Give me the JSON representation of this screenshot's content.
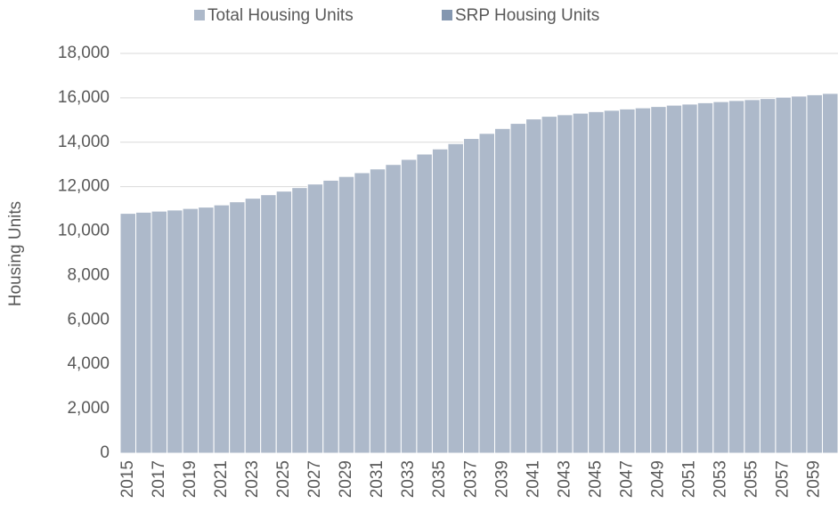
{
  "chart_data": {
    "type": "bar",
    "y_label": "Housing Units",
    "categories": [
      "2015",
      null,
      "2017",
      null,
      "2019",
      null,
      "2021",
      null,
      "2023",
      null,
      "2025",
      null,
      "2027",
      null,
      "2029",
      null,
      "2031",
      null,
      "2033",
      null,
      "2035",
      null,
      "2037",
      null,
      "2039",
      null,
      "2041",
      null,
      "2043",
      null,
      "2045",
      null,
      "2047",
      null,
      "2049",
      null,
      "2051",
      null,
      "2053",
      null,
      "2055",
      null,
      "2057",
      null,
      "2059",
      null
    ],
    "series": [
      {
        "name": "Total Housing Units",
        "color": "#adb9ca",
        "values": [
          10800,
          10850,
          10900,
          10950,
          11020,
          11080,
          11180,
          11320,
          11480,
          11640,
          11800,
          11960,
          12120,
          12290,
          12460,
          12630,
          12800,
          13000,
          13230,
          13470,
          13700,
          13940,
          14170,
          14400,
          14620,
          14850,
          15050,
          15170,
          15240,
          15310,
          15380,
          15440,
          15500,
          15550,
          15610,
          15670,
          15720,
          15780,
          15830,
          15880,
          15920,
          15970,
          16030,
          16080,
          16140,
          16200
        ]
      },
      {
        "name": "SRP Housing Units",
        "color": "#8497b0",
        "values": [
          null,
          null,
          null,
          null,
          null,
          null,
          null,
          null,
          null,
          null,
          null,
          null,
          null,
          null,
          null,
          null,
          null,
          null,
          null,
          null,
          null,
          null,
          null,
          null,
          null,
          null,
          null,
          null,
          null,
          null,
          null,
          null,
          null,
          null,
          null,
          null,
          null,
          null,
          null,
          null,
          null,
          null,
          null,
          null,
          null,
          null
        ]
      }
    ],
    "ylim": [
      0,
      18000
    ],
    "yticks": [
      0,
      {
        "value": 2000,
        "label": "2,000"
      },
      {
        "value": 4000,
        "label": "4,000"
      },
      {
        "value": 6000,
        "label": "6,000"
      },
      {
        "value": 8000,
        "label": "8,000"
      },
      {
        "value": 10000,
        "label": "10,000"
      },
      {
        "value": 12000,
        "label": "12,000"
      },
      {
        "value": 14000,
        "label": "14,000"
      },
      {
        "value": 16000,
        "label": "16,000"
      },
      {
        "value": 18000,
        "label": "18,000"
      }
    ],
    "grid": true,
    "legend": "top"
  }
}
